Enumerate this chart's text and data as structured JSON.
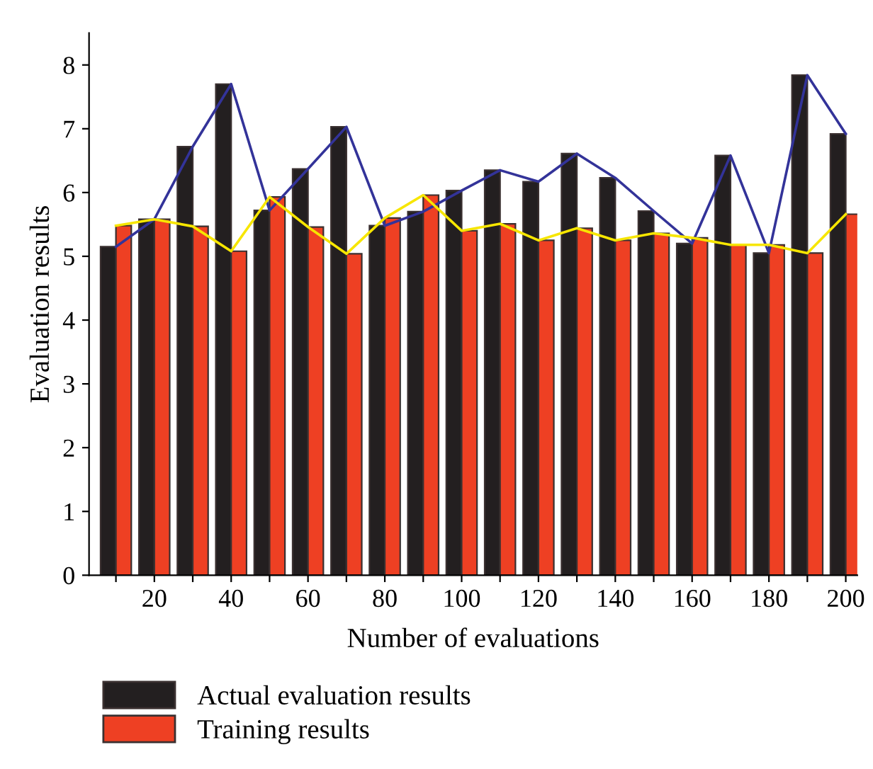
{
  "chart_data": {
    "type": "bar",
    "xlabel": "Number of evaluations",
    "ylabel": "Evaluation results",
    "x": [
      10,
      20,
      30,
      40,
      50,
      60,
      70,
      80,
      90,
      100,
      110,
      120,
      130,
      140,
      150,
      160,
      170,
      180,
      190,
      200
    ],
    "series": [
      {
        "name": "Actual evaluation results",
        "color": "#231f20",
        "values": [
          5.15,
          5.58,
          6.72,
          7.7,
          5.72,
          6.37,
          7.03,
          5.48,
          5.7,
          6.03,
          6.35,
          6.17,
          6.61,
          6.23,
          5.71,
          5.2,
          6.58,
          5.05,
          7.84,
          6.92
        ]
      },
      {
        "name": "Training results",
        "color": "#ee4023",
        "values": [
          5.48,
          5.58,
          5.47,
          5.08,
          5.93,
          5.46,
          5.04,
          5.6,
          5.96,
          5.4,
          5.51,
          5.25,
          5.44,
          5.25,
          5.36,
          5.29,
          5.18,
          5.18,
          5.05,
          5.66
        ]
      },
      {
        "type": "line",
        "color": "#333399",
        "values": [
          5.15,
          5.58,
          6.72,
          7.7,
          5.72,
          6.37,
          7.03,
          5.48,
          5.7,
          6.03,
          6.35,
          6.17,
          6.61,
          6.23,
          5.71,
          5.2,
          6.58,
          5.05,
          7.84,
          6.92
        ]
      },
      {
        "type": "line",
        "color": "#f7e600",
        "values": [
          5.48,
          5.58,
          5.47,
          5.08,
          5.93,
          5.46,
          5.04,
          5.6,
          5.96,
          5.4,
          5.51,
          5.25,
          5.44,
          5.25,
          5.36,
          5.29,
          5.18,
          5.18,
          5.05,
          5.66
        ]
      }
    ],
    "xlim": [
      3,
      203
    ],
    "xticks": [
      {
        "value": 10,
        "label": null
      },
      20,
      {
        "value": 30,
        "label": null
      },
      40,
      {
        "value": 50,
        "label": null
      },
      60,
      {
        "value": 70,
        "label": null
      },
      80,
      {
        "value": 90,
        "label": null
      },
      100,
      {
        "value": 110,
        "label": null
      },
      120,
      {
        "value": 130,
        "label": null
      },
      140,
      {
        "value": 150,
        "label": null
      },
      160,
      {
        "value": 170,
        "label": null
      },
      180,
      {
        "value": 190,
        "label": null
      },
      200
    ],
    "ylim": [
      0,
      8.5
    ],
    "yticks": [
      0,
      1,
      2,
      3,
      4,
      5,
      6,
      7,
      8
    ],
    "grid": false,
    "legend": "bottom left",
    "marker": "none",
    "line_style": "solid"
  }
}
